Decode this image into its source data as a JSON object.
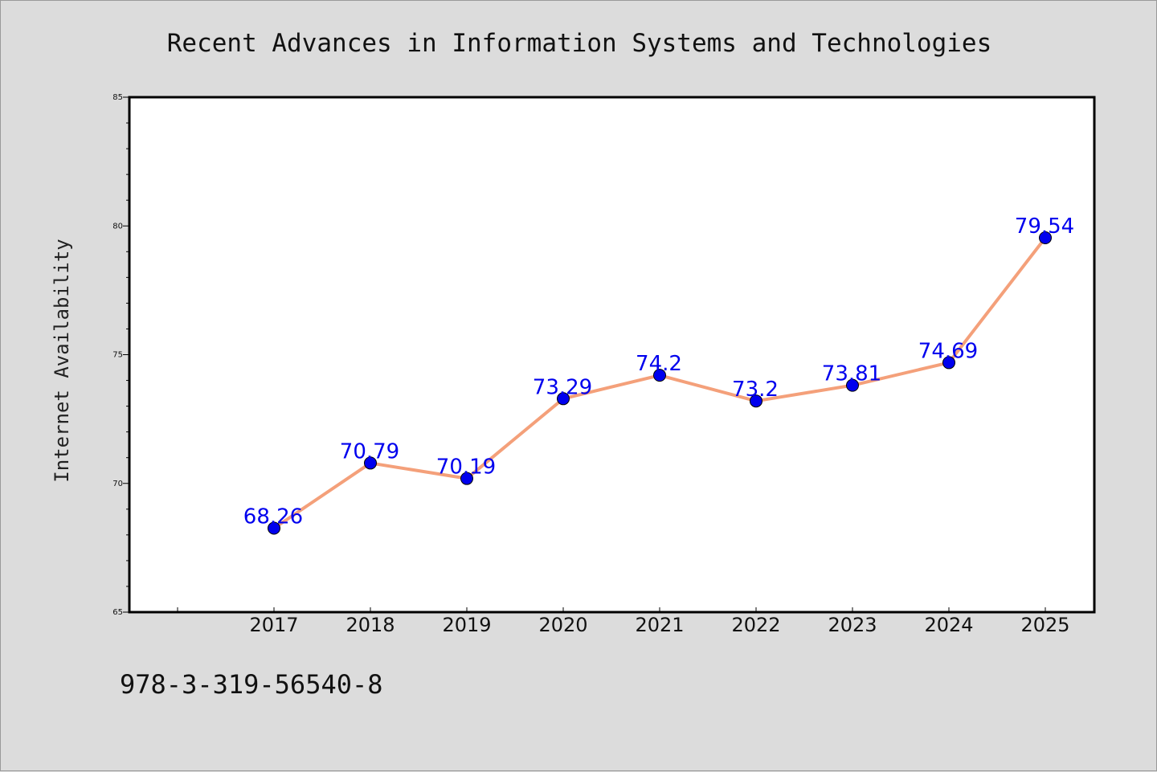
{
  "chart_data": {
    "type": "line",
    "title": "Recent Advances in Information Systems and Technologies",
    "xlabel": "",
    "ylabel": "Internet Availability",
    "categories": [
      "2017",
      "2018",
      "2019",
      "2020",
      "2021",
      "2022",
      "2023",
      "2024",
      "2025"
    ],
    "series": [
      {
        "values": [
          68.26,
          70.79,
          70.19,
          73.29,
          74.2,
          73.2,
          73.81,
          74.69,
          79.54
        ],
        "data_labels": [
          "68.26",
          "70.79",
          "70.19",
          "73.29",
          "74.2",
          "73.2",
          "73.81",
          "74.69",
          "79.54"
        ],
        "line_color": "#f4a07a",
        "marker_color": "#0000ee"
      }
    ],
    "ylim": [
      65,
      85
    ],
    "yticks": [
      "65",
      "70",
      "75",
      "80",
      "85"
    ],
    "grid": false,
    "legend": "none"
  },
  "footer": {
    "isbn": "978-3-319-56540-8"
  }
}
